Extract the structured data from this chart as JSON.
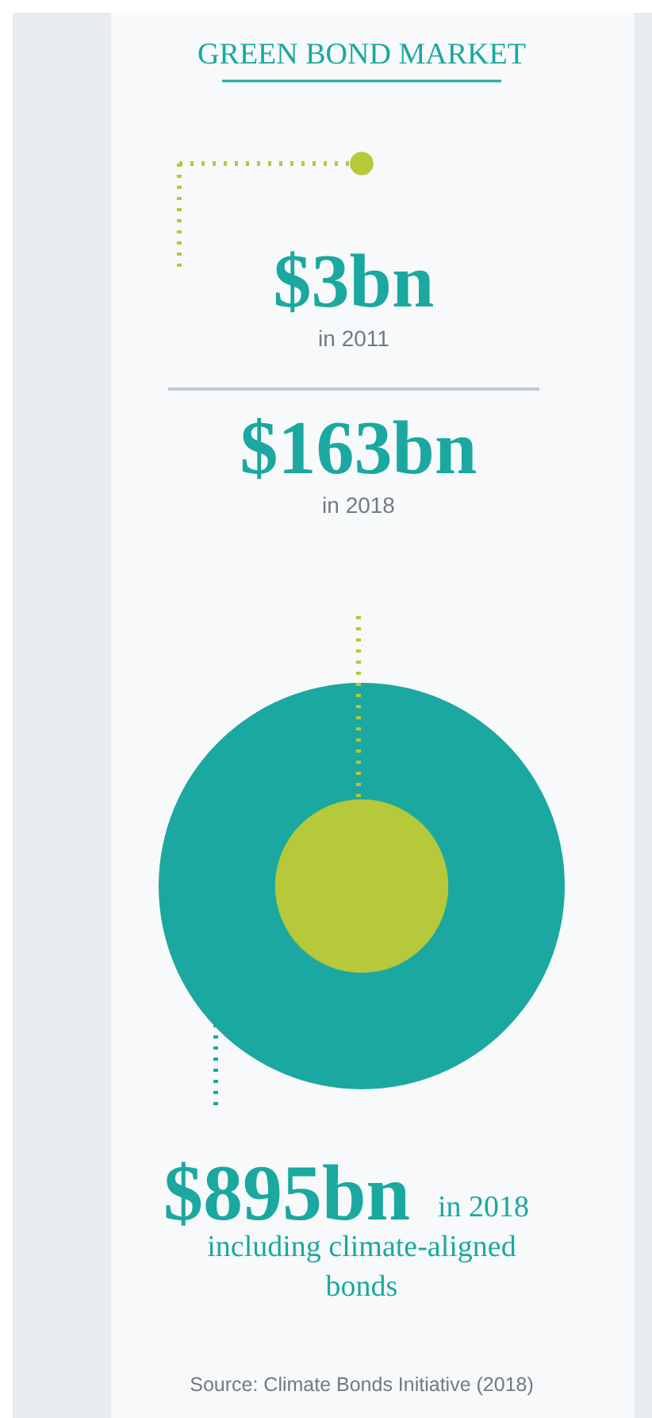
{
  "chart_data": {
    "type": "other",
    "title": "GREEN BOND MARKET",
    "categories": [
      "in 2011",
      "in 2018",
      "in 2018 including climate-aligned bonds"
    ],
    "values": [
      3,
      163,
      895
    ],
    "value_labels": [
      "$3bn",
      "$163bn",
      "$895bn"
    ],
    "colors": [
      "#b5c93a",
      "#b5c93a",
      "#1aa8a0"
    ],
    "annotations": [
      "Source: Climate Bonds Initiative (2018)"
    ]
  }
}
